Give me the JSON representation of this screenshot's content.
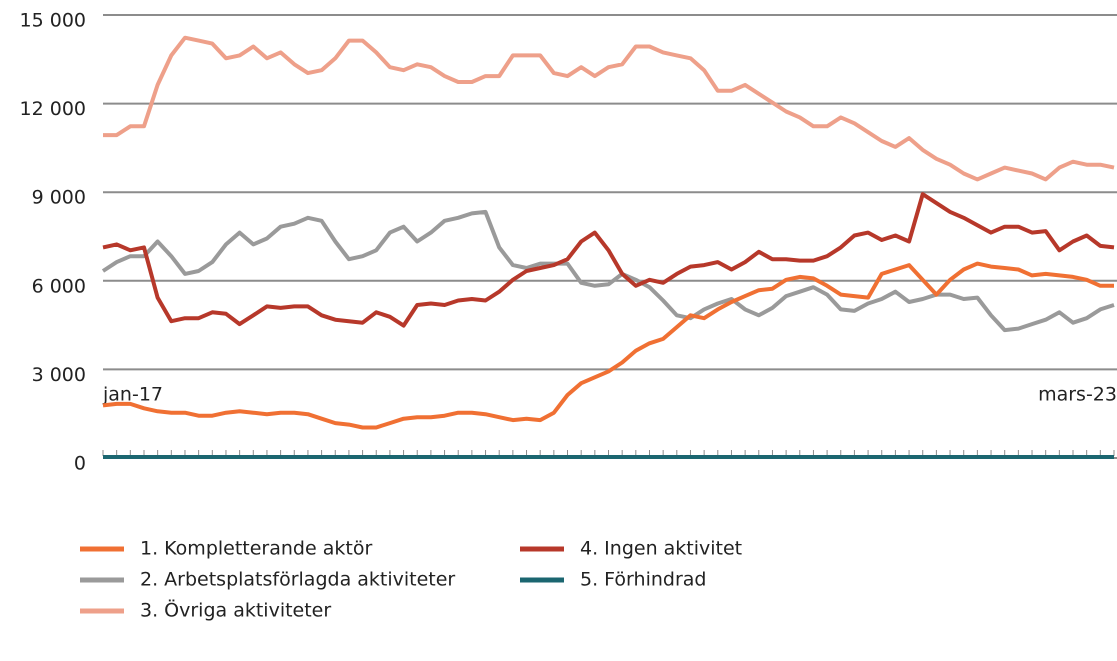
{
  "chart_data": {
    "type": "line",
    "categories": [
      "jan-17",
      null,
      null,
      null,
      null,
      null,
      null,
      null,
      null,
      null,
      null,
      null,
      null,
      null,
      null,
      null,
      null,
      null,
      null,
      null,
      null,
      null,
      null,
      null,
      null,
      null,
      null,
      null,
      null,
      null,
      null,
      null,
      null,
      null,
      null,
      null,
      null,
      null,
      null,
      null,
      null,
      null,
      null,
      null,
      null,
      null,
      null,
      null,
      null,
      null,
      null,
      null,
      null,
      null,
      null,
      null,
      null,
      null,
      null,
      null,
      null,
      null,
      null,
      null,
      null,
      null,
      null,
      null,
      null,
      null,
      null,
      null,
      null,
      null,
      "mars-23"
    ],
    "series": [
      {
        "name": "1. Kompletterande aktör",
        "color": "#f07033",
        "values": [
          1850,
          1900,
          1900,
          1750,
          1650,
          1600,
          1600,
          1500,
          1500,
          1600,
          1650,
          1600,
          1550,
          1600,
          1600,
          1550,
          1400,
          1250,
          1200,
          1100,
          1100,
          1250,
          1400,
          1450,
          1450,
          1500,
          1600,
          1600,
          1550,
          1450,
          1350,
          1400,
          1350,
          1600,
          2200,
          2600,
          2800,
          3000,
          3300,
          3700,
          3950,
          4100,
          4500,
          4900,
          4800,
          5100,
          5350,
          5550,
          5750,
          5800,
          6100,
          6200,
          6150,
          5900,
          5600,
          5550,
          5500,
          6300,
          6450,
          6600,
          6100,
          5600,
          6100,
          6450,
          6650,
          6550,
          6500,
          6450,
          6250,
          6300,
          6250,
          6200,
          6100,
          5900,
          5900
        ]
      },
      {
        "name": "2. Arbetsplatsförlagda aktiviteter",
        "color": "#9a9a9a",
        "values": [
          6400,
          6700,
          6900,
          6900,
          7400,
          6900,
          6300,
          6400,
          6700,
          7300,
          7700,
          7300,
          7500,
          7900,
          8000,
          8200,
          8100,
          7400,
          6800,
          6900,
          7100,
          7700,
          7900,
          7400,
          7700,
          8100,
          8200,
          8350,
          8400,
          7200,
          6600,
          6500,
          6650,
          6650,
          6650,
          6000,
          5900,
          5950,
          6300,
          6100,
          5850,
          5400,
          4900,
          4800,
          5100,
          5300,
          5450,
          5100,
          4900,
          5150,
          5550,
          5700,
          5850,
          5600,
          5100,
          5050,
          5300,
          5450,
          5700,
          5350,
          5450,
          5600,
          5600,
          5450,
          5500,
          4900,
          4400,
          4450,
          4600,
          4750,
          5000,
          4650,
          4800,
          5100,
          5250
        ]
      },
      {
        "name": "3. Övriga aktiviteter",
        "color": "#eea08a",
        "values": [
          11000,
          11000,
          11300,
          11300,
          12700,
          13700,
          14300,
          14200,
          14100,
          13600,
          13700,
          14000,
          13600,
          13800,
          13400,
          13100,
          13200,
          13600,
          14200,
          14200,
          13800,
          13300,
          13200,
          13400,
          13300,
          13000,
          12800,
          12800,
          13000,
          13000,
          13700,
          13700,
          13700,
          13100,
          13000,
          13300,
          13000,
          13300,
          13400,
          14000,
          14000,
          13800,
          13700,
          13600,
          13200,
          12500,
          12500,
          12700,
          12400,
          12100,
          11800,
          11600,
          11300,
          11300,
          11600,
          11400,
          11100,
          10800,
          10600,
          10900,
          10500,
          10200,
          10000,
          9700,
          9500,
          9700,
          9900,
          9800,
          9700,
          9500,
          9900,
          10100,
          10000,
          10000,
          9900
        ]
      },
      {
        "name": "4. Ingen aktivitet",
        "color": "#b7382a",
        "values": [
          7200,
          7300,
          7100,
          7200,
          5500,
          4700,
          4800,
          4800,
          5000,
          4950,
          4600,
          4900,
          5200,
          5150,
          5200,
          5200,
          4900,
          4750,
          4700,
          4650,
          5000,
          4850,
          4550,
          5250,
          5300,
          5250,
          5400,
          5450,
          5400,
          5700,
          6100,
          6400,
          6500,
          6600,
          6800,
          7400,
          7700,
          7100,
          6300,
          5900,
          6100,
          6000,
          6300,
          6550,
          6600,
          6700,
          6450,
          6700,
          7050,
          6800,
          6800,
          6750,
          6750,
          6900,
          7200,
          7600,
          7700,
          7450,
          7600,
          7400,
          9000,
          8700,
          8400,
          8200,
          7950,
          7700,
          7900,
          7900,
          7700,
          7750,
          7100,
          7400,
          7600,
          7250,
          7200
        ]
      },
      {
        "name": "5. Förhindrad",
        "color": "#1b6670",
        "values": [
          100,
          100,
          100,
          100,
          100,
          100,
          100,
          100,
          100,
          100,
          100,
          100,
          100,
          100,
          100,
          100,
          100,
          100,
          100,
          100,
          100,
          100,
          100,
          100,
          100,
          100,
          100,
          100,
          100,
          100,
          100,
          100,
          100,
          100,
          100,
          100,
          100,
          100,
          100,
          100,
          100,
          100,
          100,
          100,
          100,
          100,
          100,
          100,
          100,
          100,
          100,
          100,
          100,
          100,
          100,
          100,
          100,
          100,
          100,
          100,
          100,
          100,
          100,
          100,
          100,
          100,
          100,
          100,
          100,
          100,
          100,
          100,
          100,
          100,
          100
        ]
      }
    ],
    "ylim": [
      0,
      15000
    ],
    "yticks": [
      0,
      {
        "value": 3000,
        "label": "3 000"
      },
      {
        "value": 6000,
        "label": "6 000"
      },
      {
        "value": 9000,
        "label": "9 000"
      },
      {
        "value": 12000,
        "label": "12 000"
      },
      {
        "value": 15000,
        "label": "15 000"
      }
    ],
    "grid": true
  }
}
